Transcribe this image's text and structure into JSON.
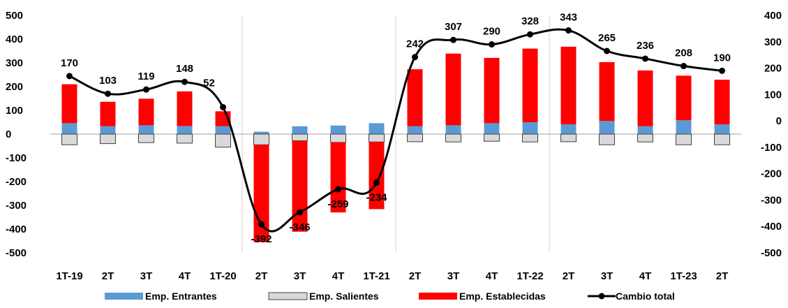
{
  "chart_data": {
    "type": "bar",
    "categories": [
      "1T-19",
      "2T",
      "3T",
      "4T",
      "1T-20",
      "2T",
      "3T",
      "4T",
      "1T-21",
      "2T",
      "3T",
      "4T",
      "1T-22",
      "2T",
      "3T",
      "4T",
      "1T-23",
      "2T"
    ],
    "series": [
      {
        "name": "Emp. Entrantes",
        "kind": "bar",
        "axis": "left",
        "color": "#5b9bd5",
        "values": [
          46,
          33,
          37,
          34,
          33,
          10,
          33,
          36,
          46,
          33,
          37,
          46,
          50,
          41,
          55,
          33,
          58,
          41
        ]
      },
      {
        "name": "Emp. Salientes",
        "kind": "bar",
        "axis": "left",
        "color": "#d9d9d9",
        "values": [
          -45,
          -40,
          -36,
          -38,
          -55,
          -45,
          -28,
          -35,
          -33,
          -32,
          -33,
          -30,
          -33,
          -32,
          -45,
          -33,
          -45,
          -45
        ]
      },
      {
        "name": "Emp. Establecidas",
        "kind": "bar",
        "axis": "left",
        "color": "#ff0000",
        "values": [
          164,
          103,
          112,
          146,
          63,
          -410,
          -383,
          -295,
          -283,
          240,
          302,
          275,
          310,
          327,
          248,
          235,
          188,
          188
        ]
      },
      {
        "name": "Cambio total",
        "kind": "line",
        "axis": "right",
        "color": "#000000",
        "values": [
          170,
          103,
          119,
          148,
          52,
          -392,
          -346,
          -259,
          -234,
          242,
          307,
          290,
          328,
          343,
          265,
          236,
          208,
          190
        ],
        "labels": [
          "170",
          "103",
          "119",
          "148",
          "52",
          "-392",
          "-346",
          "-259",
          "-234",
          "242",
          "307",
          "290",
          "328",
          "343",
          "265",
          "236",
          "208",
          "190"
        ]
      }
    ],
    "y_left": {
      "min": -500,
      "max": 500,
      "ticks": [
        "500",
        "400",
        "300",
        "200",
        "100",
        "0",
        "-100",
        "-200",
        "-300",
        "-400",
        "-500"
      ]
    },
    "y_right": {
      "min": -500,
      "max": 400,
      "ticks": [
        "400",
        "300",
        "200",
        "100",
        "0",
        "-100",
        "-200",
        "-300",
        "-400",
        "-500"
      ]
    },
    "grid": false,
    "year_separators_after": [
      4,
      8,
      12
    ],
    "legend_position": "bottom"
  }
}
